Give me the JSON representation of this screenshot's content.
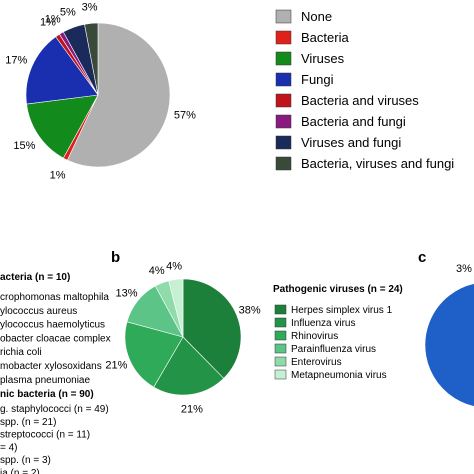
{
  "chart_data": [
    {
      "type": "pie",
      "panel": "",
      "legend_position": "right",
      "categories": [
        "None",
        "Bacteria",
        "Viruses",
        "Fungi",
        "Bacteria and viruses",
        "Bacteria and fungi",
        "Viruses and fungi",
        "Bacteria, viruses and fungi"
      ],
      "values": [
        57,
        1,
        15,
        17,
        1,
        1,
        5,
        3
      ],
      "labels": [
        "57%",
        "1%",
        "15%",
        "17%",
        "1%",
        "1%",
        "5%",
        "3%"
      ],
      "colors": [
        "#b0b0b0",
        "#e0211b",
        "#128a1c",
        "#1a2fb0",
        "#c0141c",
        "#8a1a80",
        "#1a2a5a",
        "#3a4a3a"
      ]
    },
    {
      "type": "pie",
      "panel": "b",
      "title": "Pathogenic viruses (n = 24)",
      "legend_position": "right",
      "categories": [
        "Herpes simplex virus 1",
        "Influenza virus",
        "Rhinovirus",
        "Parainfluenza virus",
        "Enterovirus",
        "Metapneumonia virus"
      ],
      "values": [
        38,
        21,
        21,
        13,
        4,
        4
      ],
      "labels": [
        "38%",
        "21%",
        "21%",
        "13%",
        "4%",
        "4%"
      ],
      "colors": [
        "#1c7f3a",
        "#239447",
        "#2eaa58",
        "#5cc486",
        "#8fdba9",
        "#c6f0d2"
      ]
    },
    {
      "type": "pie",
      "panel": "c",
      "values": [
        3
      ],
      "labels": [
        "3%"
      ],
      "colors": [
        "#1f5fc8",
        "#5fa8e8"
      ]
    }
  ],
  "left_list": {
    "header1": "acteria (n = 10)",
    "items1": [
      "crophomonas maltophila",
      "ylococcus aureus",
      "ylococcus haemolyticus",
      "obacter cloacae complex",
      "richia coli",
      "mobacter xylosoxidans",
      "plasma pneumoniae"
    ],
    "header2": "nic bacteria (n = 90)",
    "items2": [
      "g. staphylococci (n = 49)",
      "spp. (n = 21)",
      "streptococci (n = 11)",
      "= 4)",
      "spp. (n = 3)",
      "ia (n = 2)"
    ]
  }
}
